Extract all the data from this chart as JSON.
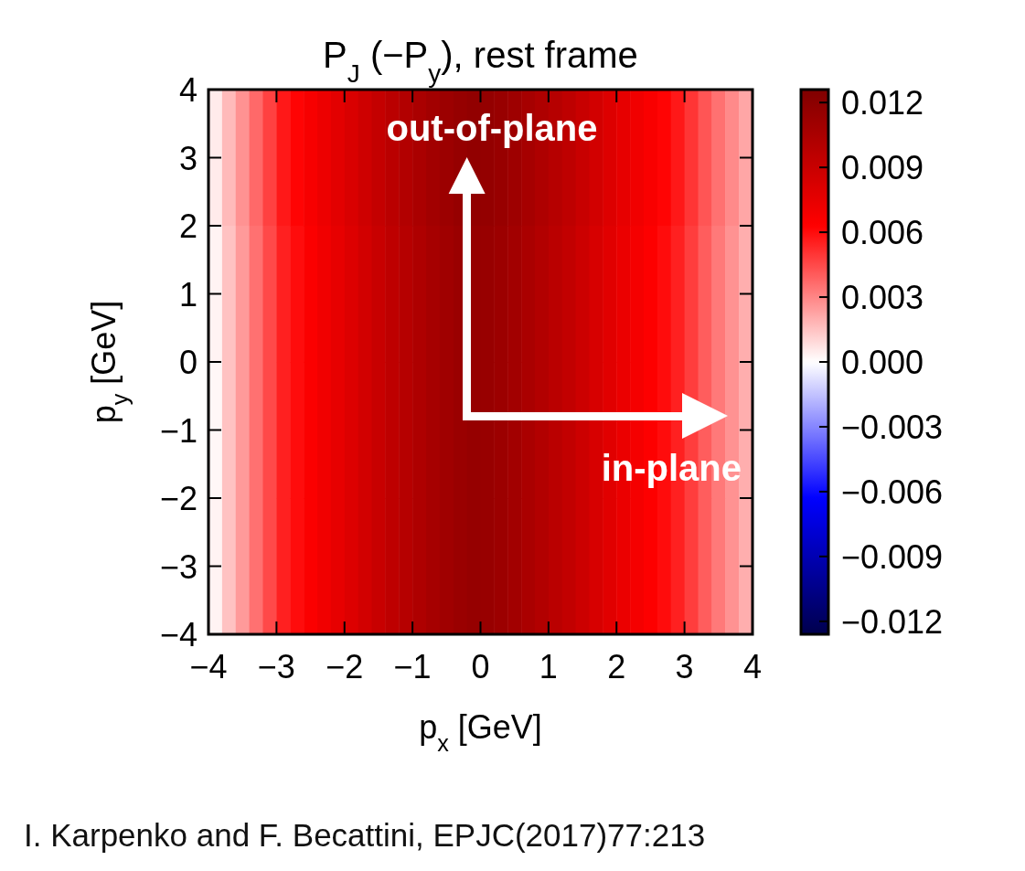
{
  "chart_data": {
    "type": "heatmap",
    "title": "P$_{J}$ (−P$_{y}$), rest frame",
    "xlabel": "p$_{x}$ [GeV]",
    "ylabel": "p$_{y}$ [GeV]",
    "xlim": [
      -4,
      4
    ],
    "ylim": [
      -4,
      4
    ],
    "xticks": [
      {
        "value": -4,
        "label": "−4"
      },
      {
        "value": -3,
        "label": "−3"
      },
      {
        "value": -2,
        "label": "−2"
      },
      {
        "value": -1,
        "label": "−1"
      },
      0,
      1,
      2,
      3,
      4
    ],
    "yticks": [
      {
        "value": -4,
        "label": "−4"
      },
      {
        "value": -3,
        "label": "−3"
      },
      {
        "value": -2,
        "label": "−2"
      },
      {
        "value": -1,
        "label": "−1"
      },
      0,
      1,
      2,
      3,
      4
    ],
    "clim": [
      -0.0126,
      0.0126
    ],
    "cticks": [
      {
        "value": -0.012,
        "label": "−0.012"
      },
      {
        "value": -0.009,
        "label": "−0.009"
      },
      {
        "value": -0.006,
        "label": "−0.006"
      },
      {
        "value": -0.003,
        "label": "−0.003"
      },
      {
        "value": 0,
        "label": "0.000"
      },
      {
        "value": 0.003,
        "label": "0.003"
      },
      {
        "value": 0.006,
        "label": "0.006"
      },
      {
        "value": 0.009,
        "label": "0.009"
      },
      {
        "value": 0.012,
        "label": "0.012"
      }
    ],
    "cells": [
      [
        0.0005,
        0.0017,
        0.0027,
        0.0037,
        0.0047,
        0.0057,
        0.0062,
        0.0067,
        0.0072,
        0.0077,
        0.0082,
        0.0087,
        0.0092,
        0.0097,
        0.0101,
        0.0105,
        0.0109,
        0.0112,
        0.0115,
        0.0117,
        0.0116,
        0.0114,
        0.0111,
        0.0107,
        0.0103,
        0.0099,
        0.0095,
        0.009,
        0.0085,
        0.008,
        0.0075,
        0.007,
        0.0066,
        0.0062,
        0.0057,
        0.005,
        0.0042,
        0.0035,
        0.0029,
        0.0022
      ],
      [
        0.0003,
        0.0015,
        0.0025,
        0.0035,
        0.0045,
        0.0055,
        0.006,
        0.0065,
        0.007,
        0.0075,
        0.008,
        0.0085,
        0.009,
        0.0095,
        0.0099,
        0.0103,
        0.0107,
        0.011,
        0.0113,
        0.0115,
        0.0114,
        0.0112,
        0.0109,
        0.0105,
        0.0101,
        0.0097,
        0.0093,
        0.0088,
        0.0083,
        0.0078,
        0.0073,
        0.0068,
        0.0064,
        0.006,
        0.0055,
        0.0048,
        0.004,
        0.0033,
        0.0027,
        0.002
      ],
      [
        0.0002,
        0.0015,
        0.0025,
        0.0035,
        0.0045,
        0.0055,
        0.006,
        0.0065,
        0.007,
        0.0075,
        0.008,
        0.0085,
        0.009,
        0.0095,
        0.0099,
        0.0103,
        0.0107,
        0.011,
        0.0113,
        0.0115,
        0.0114,
        0.0112,
        0.0109,
        0.0105,
        0.0101,
        0.0097,
        0.0093,
        0.0088,
        0.0083,
        0.0078,
        0.0073,
        0.0068,
        0.0064,
        0.006,
        0.0055,
        0.0048,
        0.004,
        0.0033,
        0.0027,
        0.002
      ],
      [
        0.0003,
        0.0015,
        0.0025,
        0.0035,
        0.0045,
        0.0055,
        0.006,
        0.0065,
        0.007,
        0.0075,
        0.008,
        0.0085,
        0.009,
        0.0095,
        0.0099,
        0.0103,
        0.0107,
        0.011,
        0.0113,
        0.0115,
        0.0114,
        0.0112,
        0.0109,
        0.0105,
        0.0101,
        0.0097,
        0.0093,
        0.0088,
        0.0083,
        0.0078,
        0.0073,
        0.0068,
        0.0064,
        0.006,
        0.0055,
        0.0048,
        0.004,
        0.0033,
        0.0027,
        0.002
      ]
    ],
    "annotations": [
      "out-of-plane",
      "in-plane",
      "I. Karpenko and F. Becattini, EPJC(2017)77:213"
    ]
  }
}
